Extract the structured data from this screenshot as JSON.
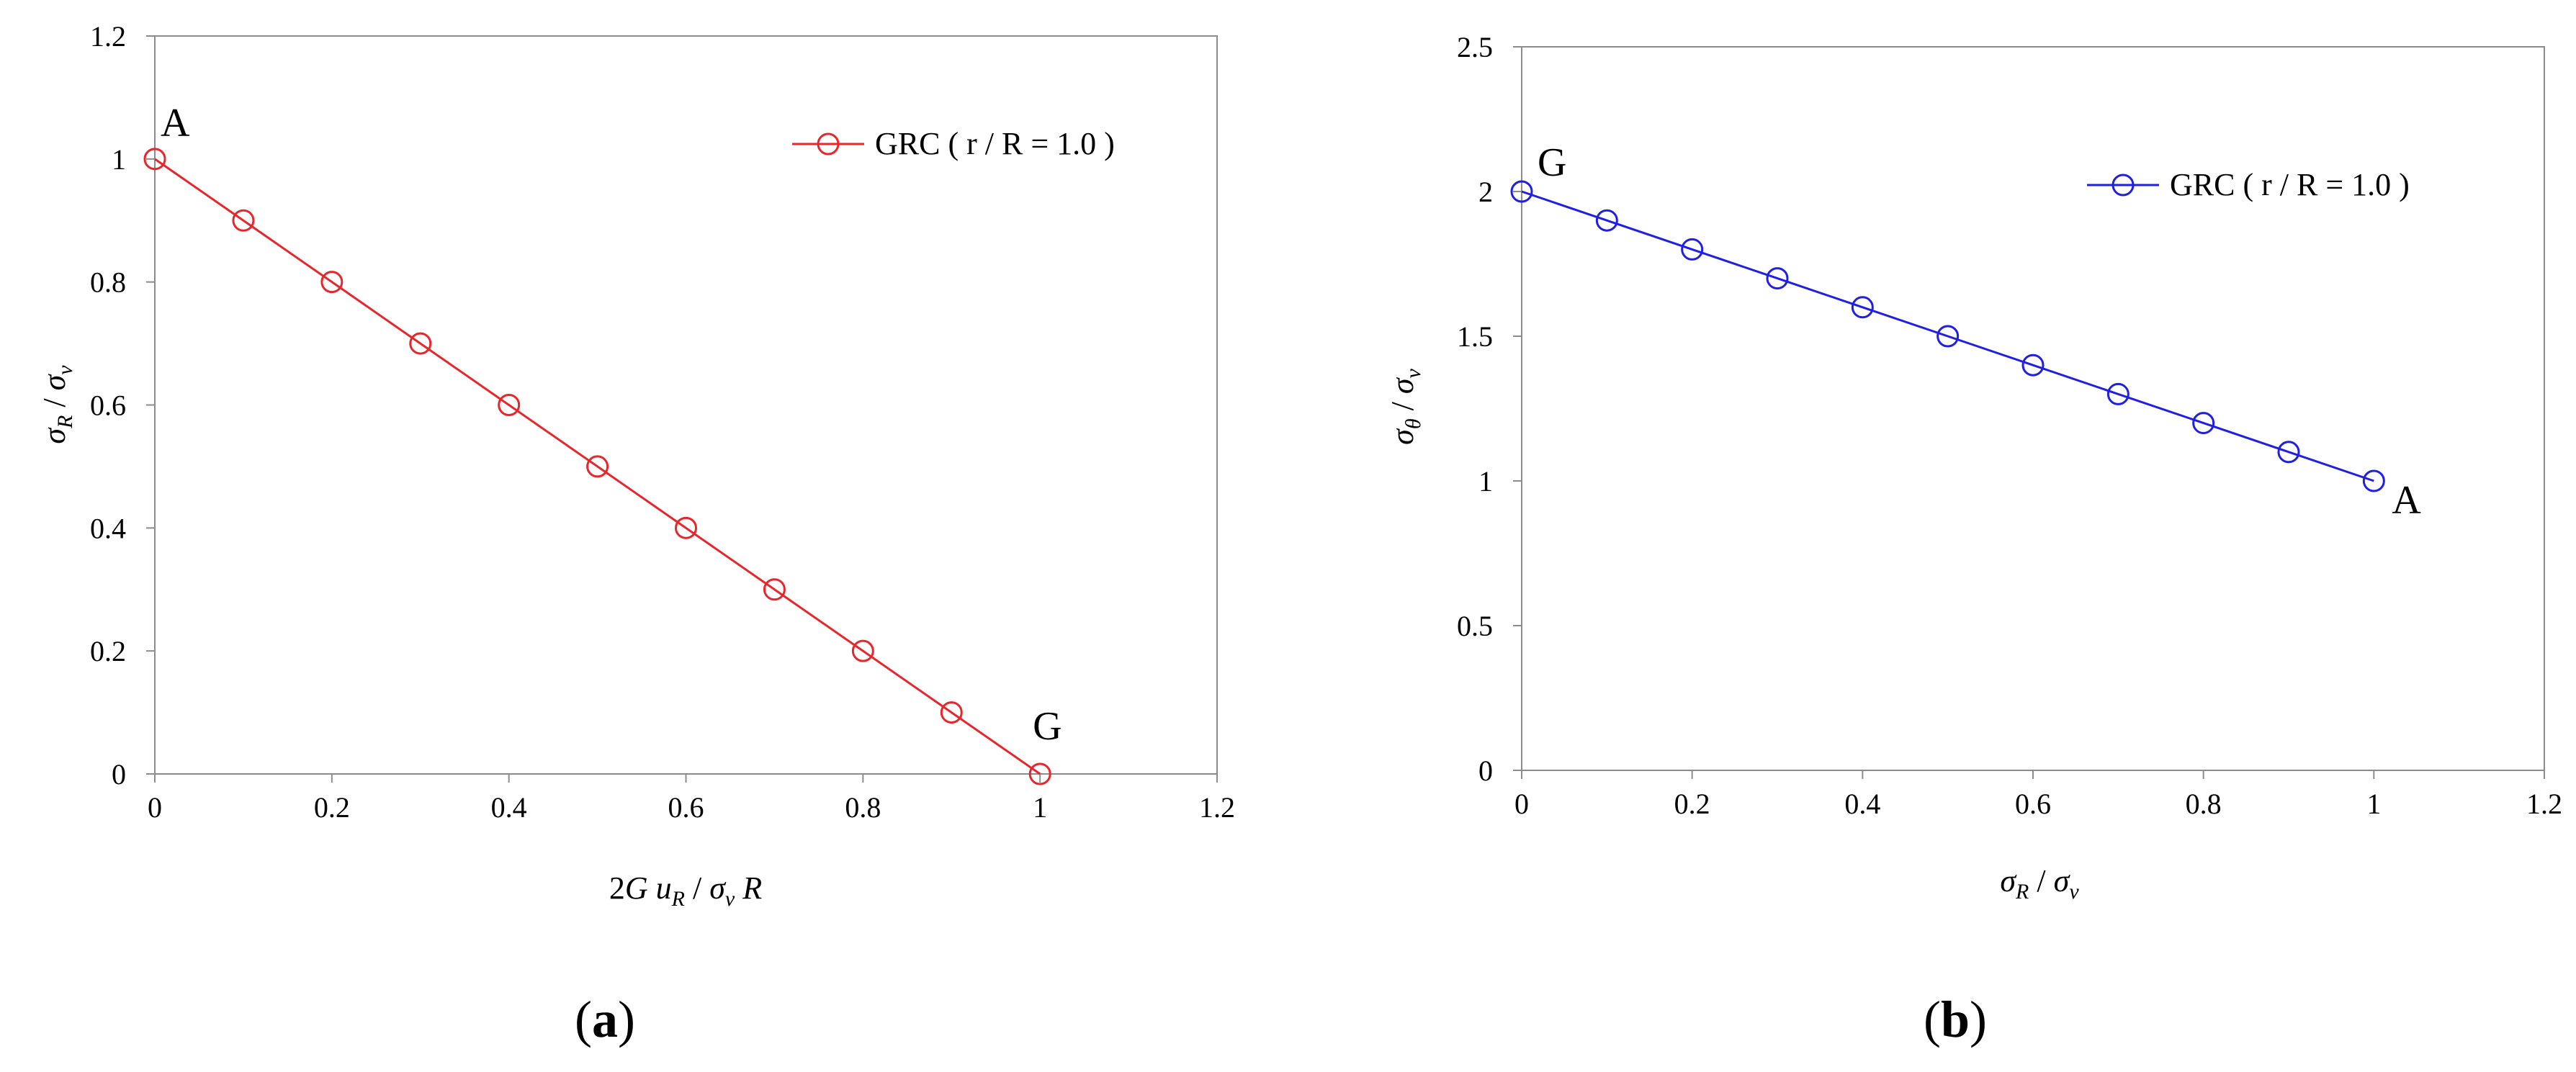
{
  "chart_data": [
    {
      "type": "line",
      "caption_open": "(",
      "caption_letter": "a",
      "caption_close": ")",
      "xlabel_parts": [
        "2",
        "G",
        " ",
        "u",
        "R",
        " / ",
        "σ",
        "v",
        " ",
        "R"
      ],
      "ylabel_parts": [
        "σ",
        "R",
        " / ",
        "σ",
        "v"
      ],
      "xlim": [
        0,
        1.2
      ],
      "ylim": [
        0,
        1.2
      ],
      "xticks": [
        "0",
        "0.2",
        "0.4",
        "0.6",
        "0.8",
        "1",
        "1.2"
      ],
      "yticks": [
        "0",
        "0.2",
        "0.4",
        "0.6",
        "0.8",
        "1",
        "1.2"
      ],
      "legend": "top-right",
      "series": [
        {
          "name": "GRC ( r / R = 1.0 )",
          "color": "#e8262b",
          "x": [
            0,
            0.1,
            0.2,
            0.3,
            0.4,
            0.5,
            0.6,
            0.7,
            0.8,
            0.9,
            1.0
          ],
          "y": [
            1.0,
            0.9,
            0.8,
            0.7,
            0.6,
            0.5,
            0.4,
            0.3,
            0.2,
            0.1,
            0.0
          ]
        }
      ],
      "annotations": [
        {
          "text": "A",
          "x": 0,
          "y": 1.0
        },
        {
          "text": "G",
          "x": 1.0,
          "y": 0.0
        }
      ]
    },
    {
      "type": "line",
      "caption_open": "(",
      "caption_letter": "b",
      "caption_close": ")",
      "xlabel_parts": [
        "σ",
        "R",
        " / ",
        "σ",
        "v"
      ],
      "ylabel_parts": [
        "σ",
        "θ",
        " / ",
        "σ",
        "v"
      ],
      "xlim": [
        0,
        1.2
      ],
      "ylim": [
        0,
        2.5
      ],
      "xticks": [
        "0",
        "0.2",
        "0.4",
        "0.6",
        "0.8",
        "1",
        "1.2"
      ],
      "yticks": [
        "0",
        "0.5",
        "1",
        "1.5",
        "2",
        "2.5"
      ],
      "legend": "top-right",
      "series": [
        {
          "name": "GRC ( r / R = 1.0 )",
          "color": "#1f1fe6",
          "x": [
            0,
            0.1,
            0.2,
            0.3,
            0.4,
            0.5,
            0.6,
            0.7,
            0.8,
            0.9,
            1.0
          ],
          "y": [
            2.0,
            1.9,
            1.8,
            1.7,
            1.6,
            1.5,
            1.4,
            1.3,
            1.2,
            1.1,
            1.0
          ]
        }
      ],
      "annotations": [
        {
          "text": "G",
          "x": 0,
          "y": 2.0
        },
        {
          "text": "A",
          "x": 1.0,
          "y": 1.0
        }
      ]
    }
  ]
}
